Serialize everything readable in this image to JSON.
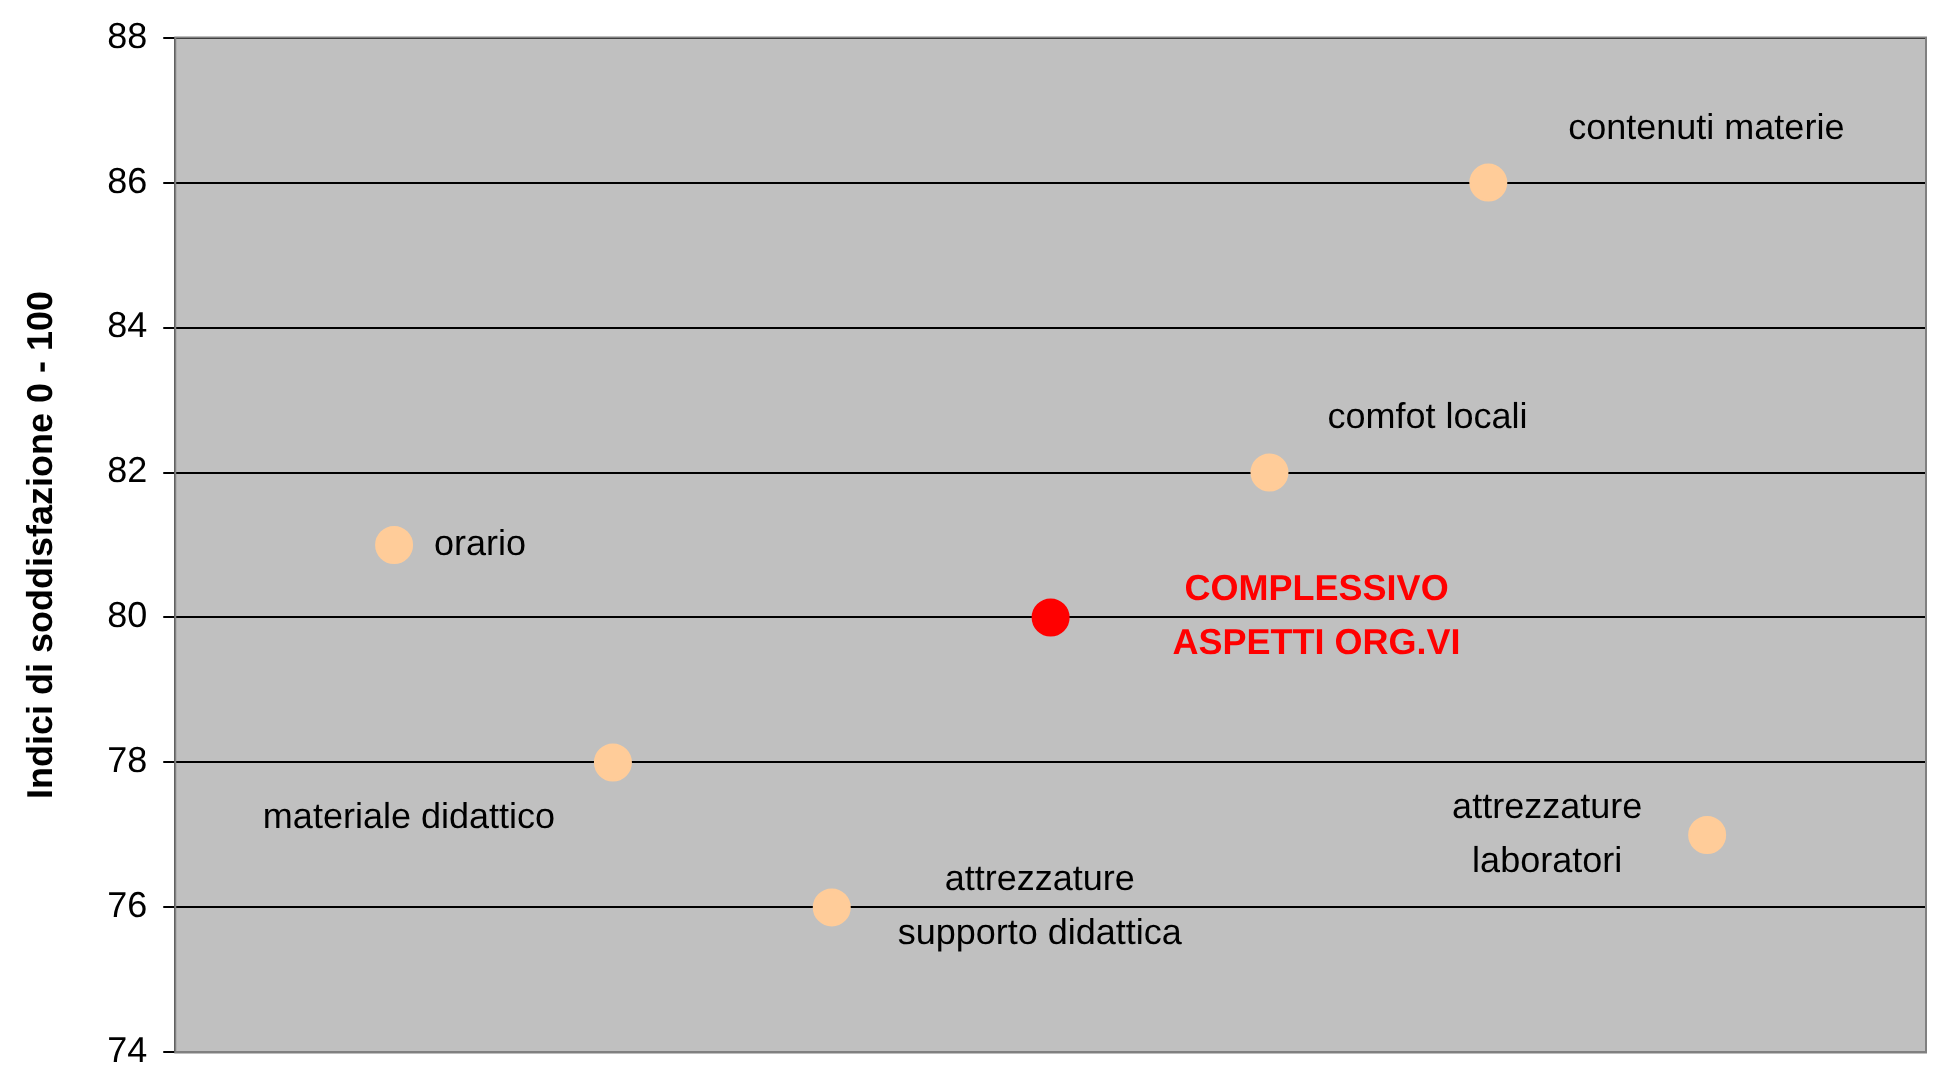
{
  "chart_data": {
    "type": "scatter",
    "ylabel": "Indici di soddisfazione 0 - 100",
    "categories": [
      null,
      null,
      null,
      null,
      null,
      null,
      null
    ],
    "ylim": [
      74,
      88
    ],
    "yticks": [
      74,
      76,
      78,
      80,
      82,
      84,
      86,
      88
    ],
    "tick_labels": "y",
    "grid": "y",
    "legend": false,
    "marker": "circle",
    "series": [
      {
        "values": [
          81,
          78,
          76,
          null,
          82,
          86,
          77
        ],
        "color": "#ffcc99"
      },
      {
        "name": "COMPLESSIVO\nASPETTI ORG.VI",
        "values": [
          null,
          null,
          null,
          80,
          null,
          null,
          null
        ],
        "color": "#ff0000"
      }
    ],
    "annotations": [
      "orario",
      "materiale didattico",
      "attrezzature\nsupporto didattica",
      "comfot locali",
      "contenuti materie",
      "attrezzature\nlaboratori"
    ]
  }
}
